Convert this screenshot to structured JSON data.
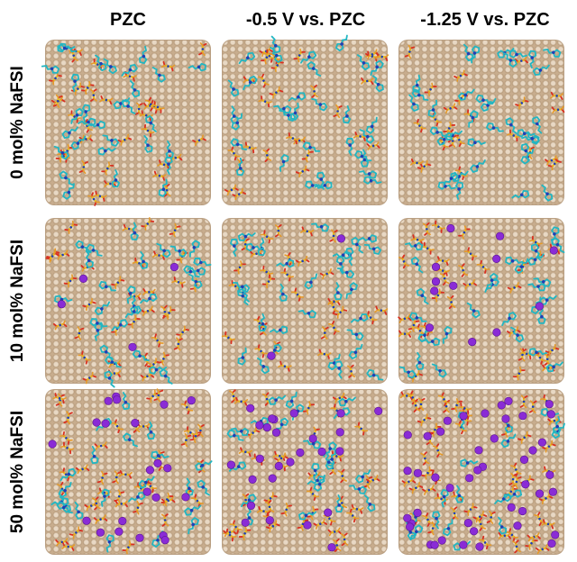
{
  "column_labels": [
    "PZC",
    "-0.5 V vs. PZC",
    "-1.25 V vs. PZC"
  ],
  "row_labels": [
    "0 mol% NaFSI",
    "10 mol% NaFSI",
    "50 mol% NaFSI"
  ],
  "colors": {
    "gold_surface": "#c8ad8e",
    "cation_ring": "#22b6c2",
    "cation_nitrogen": "#1f3fb5",
    "anion_sulfur": "#e8c020",
    "anion_oxygen": "#d83020",
    "anion_fluorine": "#e59a2a",
    "sodium": "#8a2bd6"
  },
  "panels": [
    {
      "row": 0,
      "col": 0,
      "cations": 30,
      "anions": 38,
      "sodium": 0,
      "seed": 11
    },
    {
      "row": 0,
      "col": 1,
      "cations": 33,
      "anions": 28,
      "sodium": 0,
      "seed": 23
    },
    {
      "row": 0,
      "col": 2,
      "cations": 35,
      "anions": 24,
      "sodium": 0,
      "seed": 37
    },
    {
      "row": 1,
      "col": 0,
      "cations": 28,
      "anions": 36,
      "sodium": 4,
      "seed": 41
    },
    {
      "row": 1,
      "col": 1,
      "cations": 32,
      "anions": 30,
      "sodium": 2,
      "seed": 53
    },
    {
      "row": 1,
      "col": 2,
      "cations": 28,
      "anions": 34,
      "sodium": 12,
      "seed": 67
    },
    {
      "row": 2,
      "col": 0,
      "cations": 22,
      "anions": 44,
      "sodium": 22,
      "seed": 71
    },
    {
      "row": 2,
      "col": 1,
      "cations": 24,
      "anions": 42,
      "sodium": 26,
      "seed": 83
    },
    {
      "row": 2,
      "col": 2,
      "cations": 18,
      "anions": 54,
      "sodium": 44,
      "seed": 97
    }
  ]
}
